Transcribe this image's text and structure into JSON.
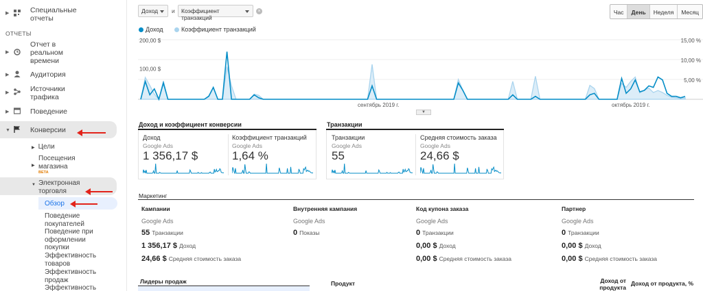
{
  "sidebar": {
    "special_reports": "Специальные отчеты",
    "section_reports": "ОТЧЕТЫ",
    "realtime": "Отчет в реальном времени",
    "audience": "Аудитория",
    "acquisition": "Источники трафика",
    "behavior": "Поведение",
    "conversions": "Конверсии",
    "goals": "Цели",
    "store_visits": "Посещения магазина",
    "beta": "BETA",
    "ecommerce": "Электронная торговля",
    "overview": "Обзор",
    "shopping_behavior": "Поведение покупателей",
    "checkout_behavior": "Поведение при оформлении покупки",
    "product_performance": "Эффективность товаров",
    "sales_performance": "Эффективность продаж",
    "more": "Эффективность"
  },
  "toolbar": {
    "metric1": "Доход",
    "vs": "и",
    "metric2": "Коэффициент транзакций",
    "granularity": [
      "Час",
      "День",
      "Неделя",
      "Месяц"
    ],
    "active_granularity": "День"
  },
  "chart_data": {
    "type": "line",
    "x_labels": [
      "сентябрь 2019 г.",
      "октябрь 2019 г."
    ],
    "y_left_ticks": [
      "200,00 $",
      "100,00 $"
    ],
    "y_right_ticks": [
      "15,00 %",
      "10,00 %",
      "5,00 %"
    ],
    "ylim_left": [
      0,
      200
    ],
    "ylim_right": [
      0,
      15
    ],
    "grid": true,
    "series": [
      {
        "name": "Доход",
        "color": "#058dc7",
        "axis": "left",
        "values": [
          0,
          60,
          15,
          35,
          0,
          55,
          0,
          0,
          0,
          0,
          0,
          0,
          0,
          0,
          0,
          10,
          40,
          0,
          0,
          160,
          0,
          0,
          0,
          0,
          0,
          15,
          5,
          0,
          0,
          0,
          0,
          0,
          0,
          0,
          0,
          0,
          0,
          0,
          0,
          0,
          0,
          0,
          0,
          0,
          0,
          0,
          0,
          0,
          0,
          0,
          0,
          45,
          0,
          0,
          0,
          0,
          0,
          0,
          0,
          0,
          0,
          0,
          0,
          0,
          0,
          0,
          0,
          0,
          0,
          0,
          55,
          30,
          0,
          0,
          0,
          0,
          0,
          0,
          0,
          0,
          0,
          0,
          15,
          0,
          0,
          0,
          0,
          10,
          0,
          0,
          0,
          0,
          0,
          0,
          0,
          0,
          0,
          0,
          0,
          15,
          20,
          0,
          0,
          0,
          0,
          0,
          70,
          20,
          35,
          65,
          25,
          30,
          45,
          40,
          75,
          65,
          20,
          10,
          10,
          5,
          10
        ]
      },
      {
        "name": "Коэффициент транзакций",
        "color": "#aad4ee",
        "axis": "right",
        "values": [
          0,
          5.5,
          3.5,
          1.3,
          0,
          4.6,
          0,
          0,
          0,
          0,
          0,
          0,
          0,
          0,
          0,
          0.9,
          3.0,
          0,
          0,
          8.2,
          3.4,
          0,
          0,
          0,
          0,
          1.3,
          1.0,
          0,
          0,
          0,
          0,
          0,
          0,
          0,
          0,
          0,
          0,
          0,
          0,
          0,
          0,
          0,
          0,
          0,
          0,
          0,
          0,
          0,
          0,
          0,
          0,
          8.8,
          0,
          0,
          0,
          0,
          0,
          0,
          0,
          0,
          0,
          0,
          0,
          0,
          0,
          0,
          0,
          0,
          0,
          0,
          5.0,
          2.3,
          0,
          0,
          0,
          0,
          0,
          0,
          0,
          0,
          0,
          0,
          4.5,
          0,
          0,
          0,
          0,
          5.8,
          0,
          0,
          0,
          0,
          0,
          0,
          0,
          0,
          0,
          0,
          0,
          3.5,
          2.7,
          0,
          0,
          0,
          0,
          0,
          4.0,
          3.0,
          4.5,
          5.6,
          1.6,
          2.3,
          2.8,
          1.7,
          2.2,
          1.7,
          1.0,
          0.5,
          0.4,
          0.2,
          0.4
        ]
      }
    ]
  },
  "conversion_section": {
    "title": "Доход и коэффициент конверсии",
    "cards": [
      {
        "label": "Доход",
        "sub": "Google Ads",
        "value": "1 356,17 $"
      },
      {
        "label": "Коэффициент транзакций",
        "sub": "Google Ads",
        "value": "1,64 %"
      }
    ]
  },
  "transactions_section": {
    "title": "Транзакции",
    "cards": [
      {
        "label": "Транзакции",
        "sub": "Google Ads",
        "value": "55"
      },
      {
        "label": "Средняя стоимость заказа",
        "sub": "Google Ads",
        "value": "24,66 $"
      }
    ]
  },
  "marketing": {
    "title": "Маркетинг",
    "columns": [
      {
        "header": "Кампании",
        "sub": "Google Ads",
        "lines": [
          {
            "value": "55",
            "label": "Транзакции"
          },
          {
            "value": "1 356,17 $",
            "label": "Доход"
          },
          {
            "value": "24,66 $",
            "label": "Средняя стоимость заказа"
          }
        ]
      },
      {
        "header": "Внутренняя кампания",
        "sub": "Google Ads",
        "lines": [
          {
            "value": "0",
            "label": "Показы"
          }
        ]
      },
      {
        "header": "Код купона заказа",
        "sub": "Google Ads",
        "lines": [
          {
            "value": "0",
            "label": "Транзакции"
          },
          {
            "value": "0,00 $",
            "label": "Доход"
          },
          {
            "value": "0,00 $",
            "label": "Средняя стоимость заказа"
          }
        ]
      },
      {
        "header": "Партнер",
        "sub": "Google Ads",
        "lines": [
          {
            "value": "0",
            "label": "Транзакции"
          },
          {
            "value": "0,00 $",
            "label": "Доход"
          },
          {
            "value": "0,00 $",
            "label": "Средняя стоимость заказа"
          }
        ]
      }
    ]
  },
  "bottom": {
    "leaders": "Лидеры продаж",
    "product": "Продукт",
    "revenue_product": "Доход от продукта",
    "revenue_product_pct": "Доход от продукта, %"
  }
}
